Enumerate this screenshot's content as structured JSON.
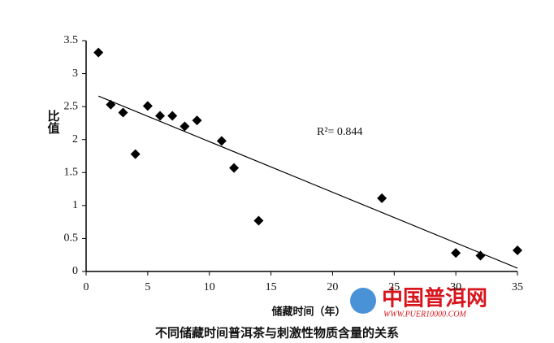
{
  "chart_data": {
    "type": "scatter",
    "title": "不同储藏时间普洱茶与刺激性物质含量的关系",
    "x_label": "储藏时间（年）",
    "y_label": "比值",
    "annotation": "R²= 0.844",
    "x": [
      1,
      2,
      3,
      4,
      5,
      6,
      7,
      8,
      9,
      11,
      12,
      14,
      24,
      30,
      32,
      35
    ],
    "values": [
      3.32,
      2.53,
      2.41,
      1.78,
      2.51,
      2.36,
      2.36,
      2.2,
      2.29,
      1.98,
      1.57,
      0.77,
      1.11,
      0.28,
      0.24,
      0.32
    ],
    "color": "#000000",
    "trendline": {
      "x": [
        1,
        35
      ],
      "y": [
        2.66,
        0.05
      ]
    },
    "xlim": [
      0,
      35
    ],
    "xticks": [
      0,
      5,
      10,
      15,
      20,
      25,
      30,
      35
    ],
    "ylim": [
      0,
      3.5
    ],
    "yticks": [
      0,
      0.5,
      1,
      1.5,
      2,
      2.5,
      3,
      3.5
    ],
    "grid": false
  },
  "watermark": {
    "title": "中国普洱网",
    "url": "WWW.PUER10000.COM"
  }
}
